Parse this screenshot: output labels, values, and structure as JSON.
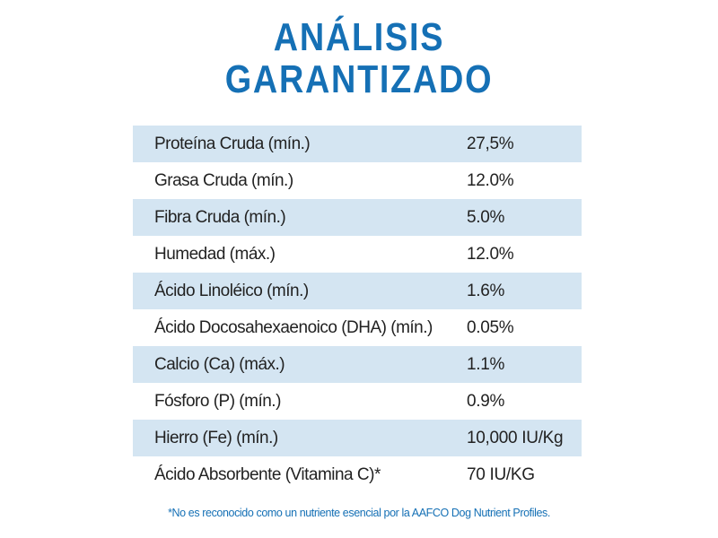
{
  "title": {
    "line1": "ANÁLISIS",
    "line2": "GARANTIZADO"
  },
  "rows": [
    {
      "label": "Proteína Cruda (mín.)",
      "value": "27,5%"
    },
    {
      "label": "Grasa Cruda (mín.)",
      "value": "12.0%"
    },
    {
      "label": "Fibra Cruda (mín.)",
      "value": "5.0%"
    },
    {
      "label": "Humedad (máx.)",
      "value": "12.0%"
    },
    {
      "label": "Ácido Linoléico (mín.)",
      "value": "1.6%"
    },
    {
      "label": "Ácido Docosahexaenoico (DHA) (mín.)",
      "value": "0.05%"
    },
    {
      "label": "Calcio (Ca) (máx.)",
      "value": "1.1%"
    },
    {
      "label": "Fósforo (P) (mín.)",
      "value": "0.9%"
    },
    {
      "label": "Hierro (Fe) (mín.)",
      "value": "10,000 IU/Kg"
    },
    {
      "label": "Ácido Absorbente (Vitamina C)*",
      "value": "70 IU/KG"
    }
  ],
  "footnote": "*No es reconocido como un nutriente esencial por la AAFCO Dog Nutrient Profiles.",
  "colors": {
    "title": "#1570b5",
    "row_shade": "#d4e5f2",
    "text": "#222222",
    "footnote": "#1570b5"
  }
}
